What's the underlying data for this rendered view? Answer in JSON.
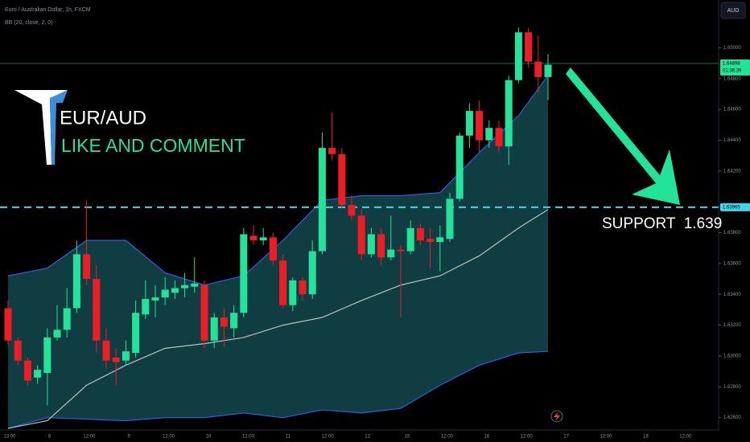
{
  "chart_data": {
    "type": "candlestick",
    "title": "Euro / Australian Dollar, 1h, FXCM",
    "indicator_label": "BB (20, close, 2, 0)",
    "currency": "AUD",
    "heading": "EUR/AUD",
    "call_to_action": "LIKE AND COMMENT",
    "support_label": "SUPPORT  1.639",
    "countdown": "01:36:39",
    "up_color": "#22e39a",
    "down_color": "#ee1c25",
    "candles": {
      "open": [
        1.6331,
        1.631,
        1.6297,
        1.6286,
        1.6289,
        1.6312,
        1.6317,
        1.6331,
        1.6366,
        1.635,
        1.631,
        1.6299,
        1.6297,
        1.6302,
        1.6327,
        1.6336,
        1.6338,
        1.6341,
        1.6344,
        1.6345,
        1.6346,
        1.631,
        1.6325,
        1.6318,
        1.6328,
        1.6378,
        1.6375,
        1.6377,
        1.6362,
        1.6333,
        1.6349,
        1.634,
        1.6368,
        1.6435,
        1.6431,
        1.6398,
        1.6391,
        1.6366,
        1.6379,
        1.6364,
        1.6369,
        1.6368,
        1.6383,
        1.6376,
        1.6374,
        1.6376,
        1.6402,
        1.6443,
        1.6459,
        1.644,
        1.6448,
        1.6436,
        1.6479,
        1.651,
        1.6491,
        1.6481
      ],
      "high": [
        1.6336,
        1.6312,
        1.6299,
        1.6294,
        1.6318,
        1.6333,
        1.6344,
        1.6375,
        1.6401,
        1.6359,
        1.6318,
        1.6305,
        1.631,
        1.6336,
        1.6349,
        1.6346,
        1.6351,
        1.6349,
        1.6354,
        1.6364,
        1.6349,
        1.6328,
        1.6331,
        1.6333,
        1.6383,
        1.6385,
        1.6383,
        1.638,
        1.6366,
        1.6351,
        1.6351,
        1.6375,
        1.6445,
        1.6458,
        1.6435,
        1.6404,
        1.6395,
        1.6383,
        1.6383,
        1.6391,
        1.6372,
        1.6388,
        1.6386,
        1.6383,
        1.6385,
        1.6406,
        1.6445,
        1.6464,
        1.6466,
        1.6453,
        1.6453,
        1.6482,
        1.6513,
        1.6513,
        1.6508,
        1.6496
      ],
      "low": [
        1.6307,
        1.6294,
        1.6281,
        1.6282,
        1.6268,
        1.631,
        1.6312,
        1.6328,
        1.6346,
        1.6302,
        1.6292,
        1.6281,
        1.6294,
        1.6299,
        1.6324,
        1.6325,
        1.6333,
        1.6337,
        1.6338,
        1.6341,
        1.6305,
        1.6305,
        1.6306,
        1.6312,
        1.6325,
        1.6372,
        1.6372,
        1.6359,
        1.6331,
        1.6329,
        1.6336,
        1.6337,
        1.6366,
        1.6427,
        1.6396,
        1.6388,
        1.6362,
        1.6364,
        1.6359,
        1.6362,
        1.6325,
        1.6366,
        1.6372,
        1.6357,
        1.6355,
        1.6374,
        1.64,
        1.6435,
        1.6432,
        1.6435,
        1.6432,
        1.6424,
        1.6477,
        1.6487,
        1.6471,
        1.6466
      ],
      "close": [
        1.631,
        1.6297,
        1.6284,
        1.6291,
        1.6312,
        1.6317,
        1.6331,
        1.6366,
        1.635,
        1.631,
        1.6297,
        1.6296,
        1.6303,
        1.6328,
        1.6337,
        1.6338,
        1.6343,
        1.6344,
        1.6346,
        1.6347,
        1.631,
        1.6325,
        1.6319,
        1.6328,
        1.6379,
        1.6375,
        1.6377,
        1.6362,
        1.6333,
        1.6349,
        1.634,
        1.6368,
        1.6435,
        1.6431,
        1.6398,
        1.6391,
        1.6366,
        1.6379,
        1.6364,
        1.6369,
        1.6368,
        1.6383,
        1.6375,
        1.6374,
        1.6377,
        1.6402,
        1.6443,
        1.6459,
        1.644,
        1.6448,
        1.6436,
        1.6479,
        1.651,
        1.6491,
        1.6481,
        1.6489
      ]
    },
    "bands": {
      "x": [
        0,
        4,
        8,
        12,
        16,
        20,
        24,
        28,
        32,
        36,
        40,
        44,
        48,
        52,
        55
      ],
      "upper": [
        1.6352,
        1.6357,
        1.6375,
        1.6375,
        1.6354,
        1.6346,
        1.6352,
        1.6375,
        1.6401,
        1.6404,
        1.6404,
        1.6406,
        1.6432,
        1.6456,
        1.6482
      ],
      "middle": [
        1.6253,
        1.6258,
        1.6281,
        1.6294,
        1.6305,
        1.6308,
        1.6312,
        1.632,
        1.6325,
        1.6336,
        1.6346,
        1.6352,
        1.6365,
        1.6383,
        1.6395
      ],
      "lower": [
        1.6253,
        1.626,
        1.6259,
        1.6258,
        1.626,
        1.626,
        1.6263,
        1.626,
        1.6265,
        1.6263,
        1.6266,
        1.6281,
        1.6294,
        1.6302,
        1.6303
      ],
      "band_color": "#2f5fe0",
      "middle_color": "#b8c2c2",
      "fill": "#0f3d42"
    },
    "price_lines": [
      {
        "value": 1.64898,
        "label": "1.64898",
        "color": "#22e39a",
        "dashed": false
      },
      {
        "value": 1.63965,
        "label": "1.63965",
        "color": "#3fd6ea",
        "dashed": true
      }
    ],
    "ylim": [
      1.6252,
      1.6531
    ],
    "yticks": [
      {
        "value": 1.65,
        "label": "1.65000"
      },
      {
        "value": 1.648,
        "label": "1.64800"
      },
      {
        "value": 1.646,
        "label": "1.64600"
      },
      {
        "value": 1.644,
        "label": "1.64400"
      },
      {
        "value": 1.642,
        "label": "1.64200"
      },
      {
        "value": 1.638,
        "label": "1.63800"
      },
      {
        "value": 1.636,
        "label": "1.63600"
      },
      {
        "value": 1.634,
        "label": "1.63400"
      },
      {
        "value": 1.632,
        "label": "1.63200"
      },
      {
        "value": 1.63,
        "label": "1.63000"
      },
      {
        "value": 1.628,
        "label": "1.62800"
      },
      {
        "value": 1.626,
        "label": "1.62600"
      }
    ],
    "x_labels": [
      "13:00",
      "8",
      "12:00",
      "9",
      "12:00",
      "10",
      "12:00",
      "11",
      "12:00",
      "12",
      "15",
      "12:00",
      "16",
      "12:00",
      "17",
      "12:00",
      "18",
      "12:00"
    ],
    "grid": false
  }
}
